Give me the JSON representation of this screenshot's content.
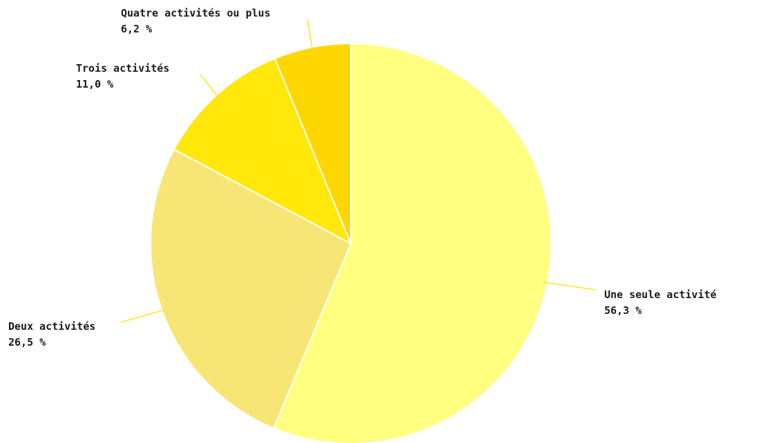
{
  "chart_data": {
    "type": "pie",
    "title": "",
    "slices": [
      {
        "label": "Une seule activité",
        "value": 56.3,
        "value_label": "56,3 %",
        "color": "#ffff80"
      },
      {
        "label": "Deux activités",
        "value": 26.5,
        "value_label": "26,5 %",
        "color": "#f7e675"
      },
      {
        "label": "Trois activités",
        "value": 11.0,
        "value_label": "11,0 %",
        "color": "#ffe80a"
      },
      {
        "label": "Quatre activités ou plus",
        "value": 6.2,
        "value_label": "6,2 %",
        "color": "#ffd700"
      }
    ],
    "start_angle_deg": 0,
    "direction": "clockwise",
    "leader_color": "#ffe31c"
  }
}
